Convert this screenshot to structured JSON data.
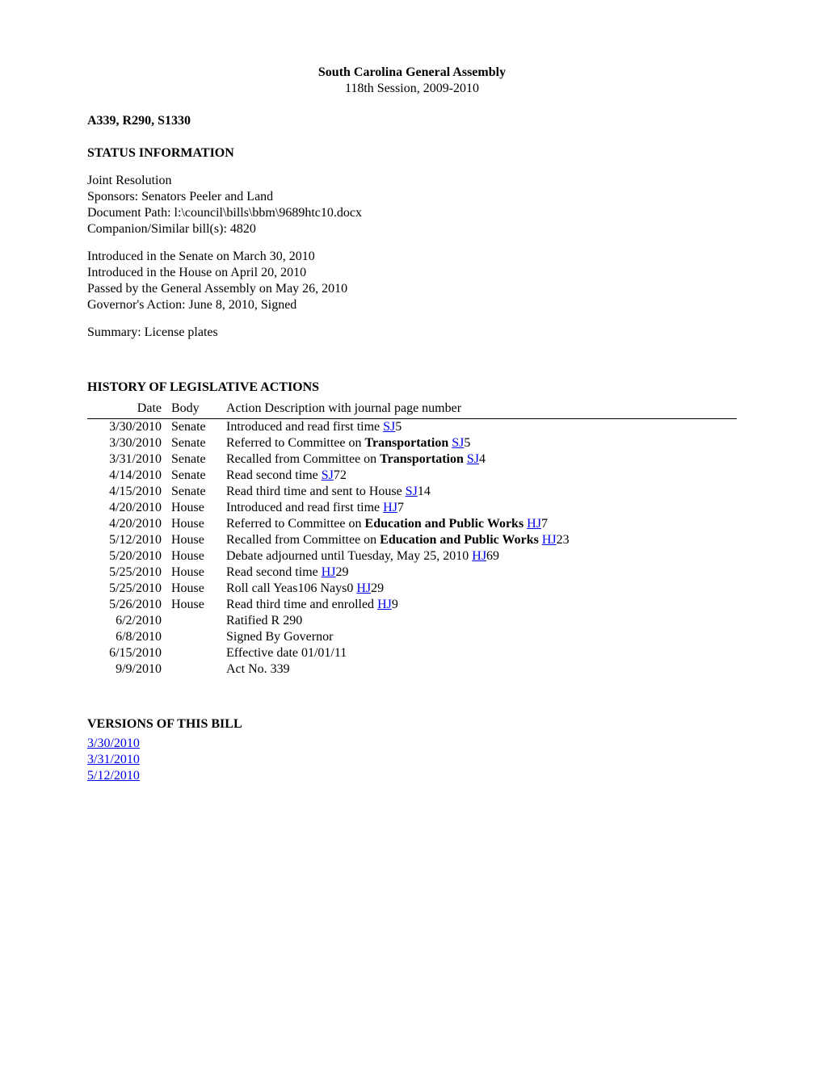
{
  "header": {
    "title": "South Carolina General Assembly",
    "session": "118th Session, 2009-2010"
  },
  "bill_ref": "A339, R290, S1330",
  "status_heading": "STATUS INFORMATION",
  "status": {
    "type": "Joint Resolution",
    "sponsors": "Sponsors: Senators Peeler and Land",
    "doc_path": "Document Path: l:\\council\\bills\\bbm\\9689htc10.docx",
    "companion": "Companion/Similar bill(s): 4820",
    "intro_senate": "Introduced in the Senate on March 30, 2010",
    "intro_house": "Introduced in the House on April 20, 2010",
    "passed": "Passed by the General Assembly on May 26, 2010",
    "governor": "Governor's Action: June 8, 2010, Signed",
    "summary": "Summary: License plates"
  },
  "history_heading": "HISTORY OF LEGISLATIVE ACTIONS",
  "table": {
    "headers": {
      "date": "Date",
      "body": "Body",
      "action": "Action Description with journal page number"
    },
    "rows": [
      {
        "date": "3/30/2010",
        "body": "Senate",
        "pre": "Introduced and read first time ",
        "link": "SJ",
        "post": "5"
      },
      {
        "date": "3/30/2010",
        "body": "Senate",
        "pre": "Referred to Committee on ",
        "bold": "Transportation",
        "mid": " ",
        "link": "SJ",
        "post": "5"
      },
      {
        "date": "3/31/2010",
        "body": "Senate",
        "pre": "Recalled from Committee on ",
        "bold": "Transportation",
        "mid": " ",
        "link": "SJ",
        "post": "4"
      },
      {
        "date": "4/14/2010",
        "body": "Senate",
        "pre": "Read second time ",
        "link": "SJ",
        "post": "72"
      },
      {
        "date": "4/15/2010",
        "body": "Senate",
        "pre": "Read third time and sent to House ",
        "link": "SJ",
        "post": "14"
      },
      {
        "date": "4/20/2010",
        "body": "House",
        "pre": "Introduced and read first time ",
        "link": "HJ",
        "post": "7"
      },
      {
        "date": "4/20/2010",
        "body": "House",
        "pre": "Referred to Committee on ",
        "bold": "Education and Public Works",
        "mid": " ",
        "link": "HJ",
        "post": "7"
      },
      {
        "date": "5/12/2010",
        "body": "House",
        "pre": "Recalled from Committee on ",
        "bold": "Education and Public Works",
        "mid": " ",
        "link": "HJ",
        "post": "23"
      },
      {
        "date": "5/20/2010",
        "body": "House",
        "pre": "Debate adjourned until Tuesday, May 25, 2010 ",
        "link": "HJ",
        "post": "69"
      },
      {
        "date": "5/25/2010",
        "body": "House",
        "pre": "Read second time ",
        "link": "HJ",
        "post": "29"
      },
      {
        "date": "5/25/2010",
        "body": "House",
        "pre": "Roll call Yeas106  Nays0 ",
        "link": "HJ",
        "post": "29"
      },
      {
        "date": "5/26/2010",
        "body": "House",
        "pre": "Read third time and enrolled ",
        "link": "HJ",
        "post": "9"
      },
      {
        "date": "6/2/2010",
        "body": "",
        "pre": "Ratified R 290"
      },
      {
        "date": "6/8/2010",
        "body": "",
        "pre": "Signed By Governor"
      },
      {
        "date": "6/15/2010",
        "body": "",
        "pre": "Effective date 01/01/11"
      },
      {
        "date": "9/9/2010",
        "body": "",
        "pre": "Act No. 339"
      }
    ]
  },
  "versions_heading": "VERSIONS OF THIS BILL",
  "versions": [
    "3/30/2010",
    "3/31/2010",
    "5/12/2010"
  ],
  "colors": {
    "link": "#0000ee",
    "text": "#000000",
    "bg": "#ffffff"
  }
}
